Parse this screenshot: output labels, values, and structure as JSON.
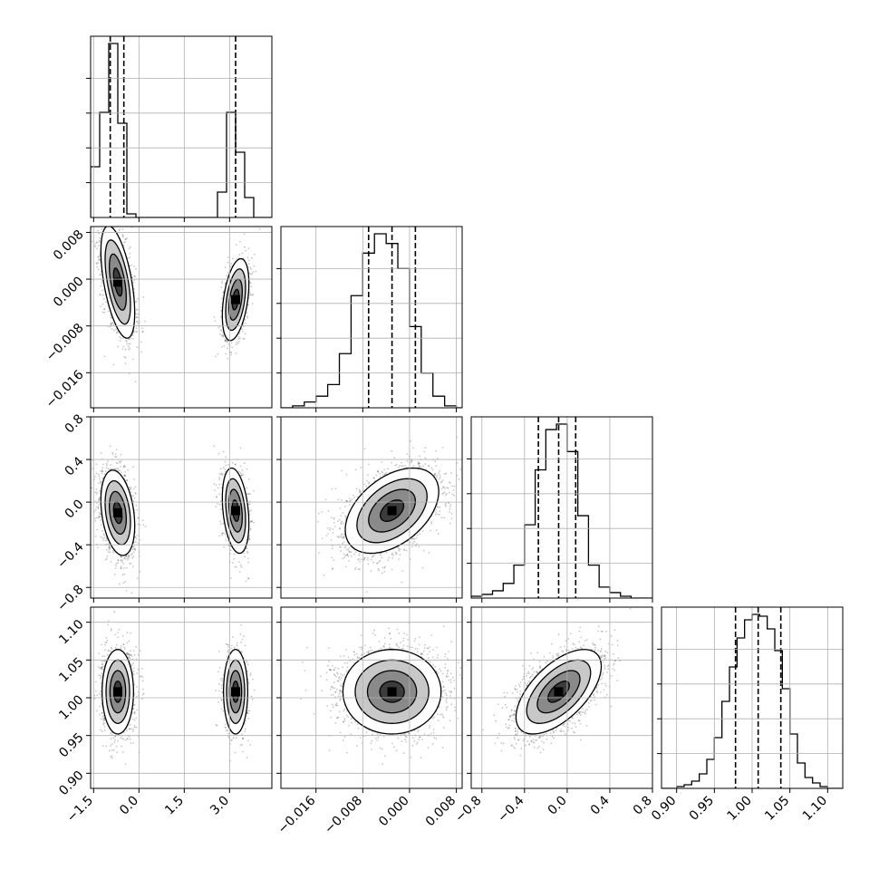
{
  "chart_data": {
    "type": "corner",
    "parameters": 4,
    "grid": true,
    "legend": "none",
    "axis_ticks": [
      {
        "range": [
          -1.6,
          4.4
        ],
        "ticks": [
          -1.5,
          0.0,
          1.5,
          3.0
        ],
        "tick_labels": [
          "−1.5",
          "0.0",
          "1.5",
          "3.0"
        ]
      },
      {
        "range": [
          -0.022,
          0.009
        ],
        "ticks": [
          -0.016,
          -0.008,
          0.0,
          0.008
        ],
        "tick_labels": [
          "−0.016",
          "−0.008",
          "0.000",
          "0.008"
        ]
      },
      {
        "range": [
          -0.9,
          0.8
        ],
        "ticks": [
          -0.8,
          -0.4,
          0.0,
          0.4,
          0.8
        ],
        "tick_labels": [
          "−0.8",
          "−0.4",
          "0.0",
          "0.4",
          "0.8"
        ]
      },
      {
        "range": [
          0.88,
          1.12
        ],
        "ticks": [
          0.9,
          0.95,
          1.0,
          1.05,
          1.1
        ],
        "tick_labels": [
          "0.90",
          "0.95",
          "1.00",
          "1.05",
          "1.10"
        ]
      }
    ],
    "histograms": [
      {
        "param": 0,
        "bin_edges": [
          -1.6,
          -1.3,
          -1.0,
          -0.7,
          -0.4,
          -0.1,
          0.2,
          0.5,
          0.8,
          1.1,
          1.4,
          1.7,
          2.0,
          2.3,
          2.6,
          2.9,
          3.2,
          3.5,
          3.8,
          4.1,
          4.4
        ],
        "counts": [
          0.28,
          0.58,
          0.96,
          0.52,
          0.02,
          0,
          0,
          0,
          0,
          0,
          0,
          0,
          0,
          0,
          0.14,
          0.58,
          0.36,
          0.11,
          0,
          0
        ],
        "quantiles": [
          -0.95,
          -0.5,
          3.2
        ]
      },
      {
        "param": 1,
        "bin_edges": [
          -0.022,
          -0.02,
          -0.018,
          -0.016,
          -0.014,
          -0.012,
          -0.01,
          -0.008,
          -0.006,
          -0.004,
          -0.002,
          0.0,
          0.002,
          0.004,
          0.006,
          0.008,
          0.009
        ],
        "counts": [
          0,
          0.01,
          0.03,
          0.06,
          0.12,
          0.28,
          0.58,
          0.8,
          0.9,
          0.85,
          0.72,
          0.42,
          0.18,
          0.06,
          0.01,
          0
        ],
        "quantiles": [
          -0.007,
          -0.003,
          0.001
        ]
      },
      {
        "param": 2,
        "bin_edges": [
          -0.9,
          -0.8,
          -0.7,
          -0.6,
          -0.5,
          -0.4,
          -0.3,
          -0.2,
          -0.1,
          0.0,
          0.1,
          0.2,
          0.3,
          0.4,
          0.5,
          0.6,
          0.7,
          0.8
        ],
        "counts": [
          0.01,
          0.02,
          0.04,
          0.08,
          0.18,
          0.4,
          0.7,
          0.92,
          0.95,
          0.8,
          0.45,
          0.18,
          0.06,
          0.03,
          0.01,
          0,
          0
        ],
        "quantiles": [
          -0.27,
          -0.08,
          0.08
        ]
      },
      {
        "param": 3,
        "bin_edges": [
          0.88,
          0.89,
          0.9,
          0.91,
          0.92,
          0.93,
          0.94,
          0.95,
          0.96,
          0.97,
          0.98,
          0.99,
          1.0,
          1.01,
          1.02,
          1.03,
          1.04,
          1.05,
          1.06,
          1.07,
          1.08,
          1.09,
          1.1,
          1.11,
          1.12
        ],
        "counts": [
          0,
          0,
          0.01,
          0.02,
          0.04,
          0.08,
          0.16,
          0.28,
          0.48,
          0.67,
          0.83,
          0.93,
          0.96,
          0.95,
          0.88,
          0.76,
          0.55,
          0.3,
          0.14,
          0.06,
          0.03,
          0.01,
          0,
          0
        ],
        "quantiles": [
          0.978,
          1.008,
          1.038
        ]
      }
    ],
    "scatter_modes": [
      {
        "xparam": 0,
        "yparam": 1,
        "modes": [
          {
            "cx": -0.7,
            "cy": -0.0005,
            "sx": 0.28,
            "sy": 0.0048,
            "r": -0.55,
            "w": 0.66
          },
          {
            "cx": 3.2,
            "cy": -0.0035,
            "sx": 0.22,
            "sy": 0.0035,
            "r": 0.4,
            "w": 0.34
          }
        ]
      },
      {
        "xparam": 0,
        "yparam": 2,
        "modes": [
          {
            "cx": -0.7,
            "cy": -0.1,
            "sx": 0.28,
            "sy": 0.2,
            "r": -0.3,
            "w": 0.66
          },
          {
            "cx": 3.2,
            "cy": -0.08,
            "sx": 0.22,
            "sy": 0.2,
            "r": -0.3,
            "w": 0.34
          }
        ]
      },
      {
        "xparam": 0,
        "yparam": 3,
        "modes": [
          {
            "cx": -0.7,
            "cy": 1.008,
            "sx": 0.26,
            "sy": 0.028,
            "r": 0.0,
            "w": 0.66
          },
          {
            "cx": 3.2,
            "cy": 1.008,
            "sx": 0.2,
            "sy": 0.028,
            "r": 0.0,
            "w": 0.34
          }
        ]
      },
      {
        "xparam": 1,
        "yparam": 2,
        "modes": [
          {
            "cx": -0.003,
            "cy": -0.08,
            "sx": 0.004,
            "sy": 0.2,
            "r": 0.45,
            "w": 1.0
          }
        ]
      },
      {
        "xparam": 1,
        "yparam": 3,
        "modes": [
          {
            "cx": -0.003,
            "cy": 1.008,
            "sx": 0.0042,
            "sy": 0.028,
            "r": 0.0,
            "w": 1.0
          }
        ]
      },
      {
        "xparam": 2,
        "yparam": 3,
        "modes": [
          {
            "cx": -0.08,
            "cy": 1.008,
            "sx": 0.2,
            "sy": 0.028,
            "r": 0.6,
            "w": 1.0
          }
        ]
      }
    ]
  }
}
